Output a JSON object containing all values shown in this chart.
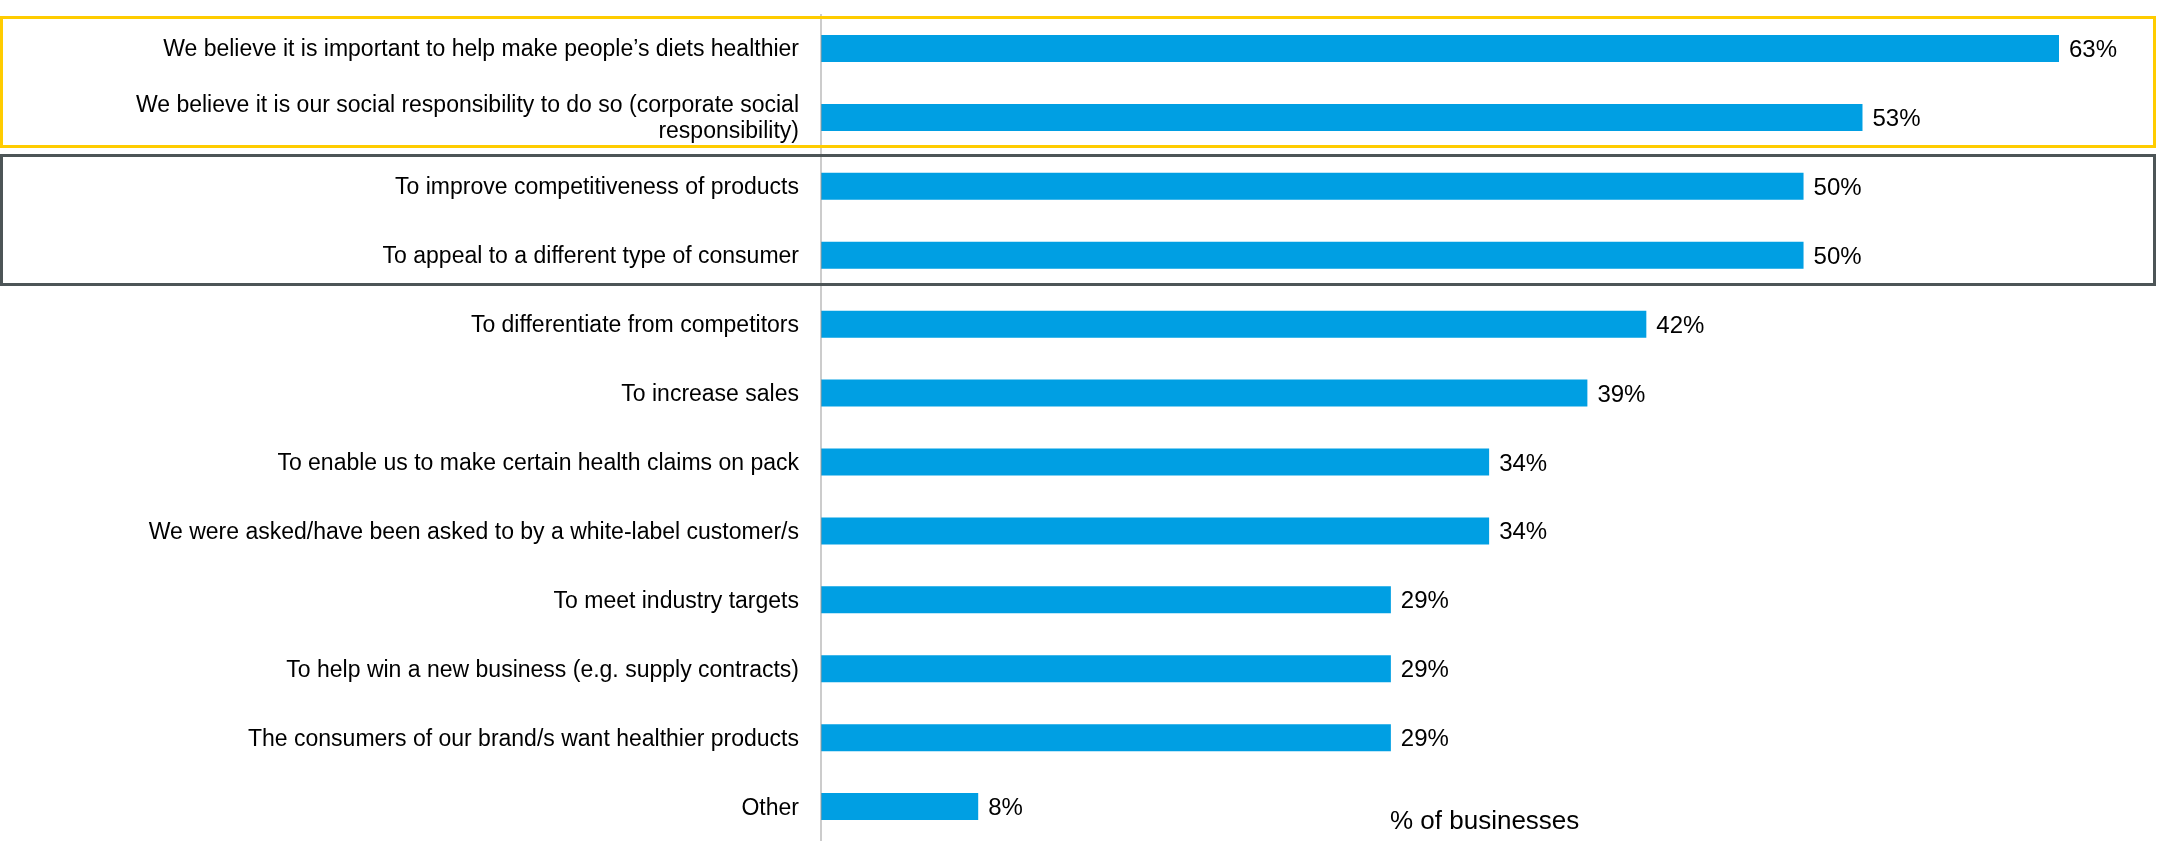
{
  "chart_data": {
    "type": "bar",
    "orientation": "horizontal",
    "xlabel": "% of businesses",
    "categories": [
      "We believe it is important to help make people’s diets healthier",
      "We believe it is our social responsibility to do so (corporate social responsibility)",
      "To improve competitiveness of products",
      "To appeal to a different type of consumer",
      "To differentiate from competitors",
      "To increase sales",
      "To enable us to make certain health claims on pack",
      "We were asked/have been asked to by a white-label customer/s",
      "To meet industry targets",
      "To help win a new business (e.g. supply contracts)",
      "The consumers of our brand/s want healthier products",
      "Other"
    ],
    "values": [
      63,
      53,
      50,
      50,
      42,
      39,
      34,
      34,
      29,
      29,
      29,
      8
    ],
    "value_labels": [
      "63%",
      "53%",
      "50%",
      "50%",
      "42%",
      "39%",
      "34%",
      "34%",
      "29%",
      "29%",
      "29%",
      "8%"
    ],
    "color": "#009fe3"
  }
}
